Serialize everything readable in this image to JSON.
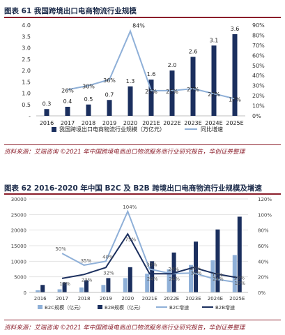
{
  "figure61": {
    "title": "图表 61 我国跨境出口电商物流行业规模",
    "source": "资料来源：艾瑞咨询 ©2021 年中国跨境电商出口物流服务商行业研究报告，华创证券整理"
  },
  "figure62": {
    "title": "图表 62 2016-2020 年中国 B2C 及 B2B 跨境出口电商物流行业规模及增速",
    "source": "资料来源：艾瑞咨询 ©2021 年中国跨境电商出口物流服务商行业研究报告，华创证券整理"
  },
  "chart_data": [
    {
      "type": "bar",
      "categories": [
        "2016",
        "2017",
        "2018",
        "2019",
        "2020",
        "2021E",
        "2022E",
        "2023E",
        "2024E",
        "2025E"
      ],
      "series": [
        {
          "name": "我国跨境出口电商物流行业规模（万亿元）",
          "type": "bar",
          "axis": "left",
          "values": [
            0.3,
            0.4,
            0.5,
            0.7,
            1.3,
            1.6,
            2.0,
            2.6,
            3.1,
            3.6
          ],
          "labels": [
            "0.3",
            "0.4",
            "0.5",
            "0.7",
            "1.3",
            "1.6",
            "2.0",
            "2.6",
            "3.1",
            "3.6"
          ],
          "color": "#1b2f5e"
        },
        {
          "name": "同比增速",
          "type": "line",
          "axis": "right",
          "values": [
            null,
            26,
            30,
            36,
            84,
            25,
            25,
            27,
            22,
            17
          ],
          "labels": [
            "",
            "26%",
            "30%",
            "36%",
            "84%",
            "25%",
            "25%",
            "27%",
            "22%",
            "17%"
          ],
          "color": "#8fb0d8"
        }
      ],
      "y_left": {
        "ticks": [
          "-",
          "0.5",
          "1.0",
          "1.5",
          "2.0",
          "2.5",
          "3.0",
          "3.5",
          "4.0"
        ],
        "min": 0,
        "max": 4
      },
      "y_right": {
        "ticks": [
          "0%",
          "10%",
          "20%",
          "30%",
          "40%",
          "50%",
          "60%",
          "70%",
          "80%",
          "90%"
        ],
        "min": 0,
        "max": 90
      },
      "legend_position": "bottom",
      "grid": false
    },
    {
      "type": "bar",
      "categories": [
        "2016",
        "2017",
        "2018",
        "2019",
        "2020",
        "2021E",
        "2022E",
        "2023E",
        "2024E",
        "2025E"
      ],
      "series": [
        {
          "name": "B2C规模（亿元）",
          "type": "bar",
          "axis": "left",
          "values": [
            700,
            1000,
            1600,
            2400,
            4600,
            6000,
            7400,
            8800,
            10300,
            12000
          ],
          "color": "#8fb0d8"
        },
        {
          "name": "B2B规模（亿元）",
          "type": "bar",
          "axis": "left",
          "values": [
            2400,
            3200,
            3900,
            4600,
            8100,
            10000,
            12800,
            16300,
            20200,
            24300
          ],
          "color": "#1b2f5e"
        },
        {
          "name": "B2C增速",
          "type": "line",
          "axis": "right",
          "values": [
            null,
            50,
            35,
            40,
            104,
            30,
            24,
            25,
            17,
            13
          ],
          "labels": [
            "",
            "50%",
            "35%",
            "40%",
            "104%",
            "30%",
            "24%",
            "25%",
            "17%",
            "13%"
          ],
          "color": "#8fb0d8"
        },
        {
          "name": "B2B增速",
          "type": "line",
          "axis": "right",
          "values": [
            null,
            18,
            23,
            32,
            75,
            24,
            24,
            32,
            24,
            19
          ],
          "labels": [
            "",
            "18%",
            "23%",
            "32%",
            "75%",
            "24%",
            "24%",
            "32%",
            "24%",
            "19%"
          ],
          "color": "#1b2f5e"
        }
      ],
      "y_left": {
        "ticks": [
          "0",
          "5000",
          "10000",
          "15000",
          "20000",
          "25000",
          "30000"
        ],
        "min": 0,
        "max": 30000
      },
      "y_right": {
        "ticks": [
          "0%",
          "20%",
          "40%",
          "60%",
          "80%",
          "100%",
          "120%"
        ],
        "min": 0,
        "max": 120
      },
      "legend_position": "bottom",
      "grid": true
    }
  ]
}
